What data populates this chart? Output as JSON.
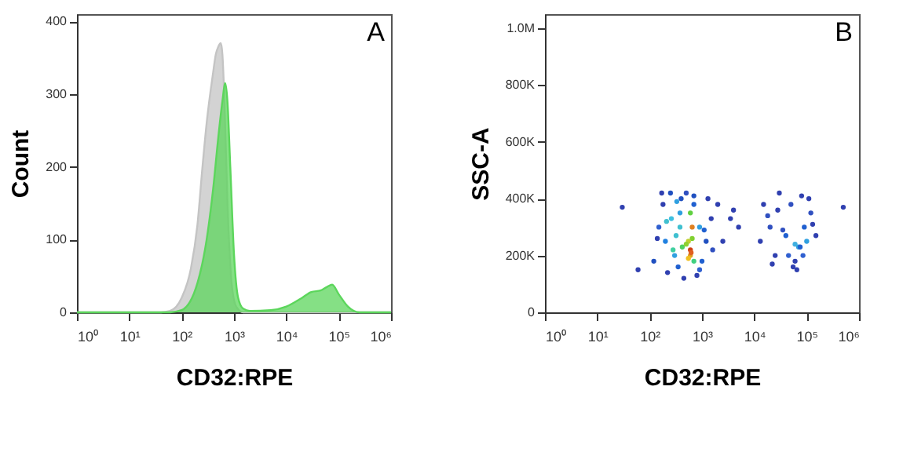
{
  "chart_data": [
    {
      "type": "area",
      "xlabel": "CD32:RPE",
      "ylabel": "Count",
      "annotations": [
        "A"
      ],
      "log": "x",
      "grid": false,
      "xlim": [
        1,
        1000000
      ],
      "xticks": [
        {
          "value": 1,
          "label": "10⁰"
        },
        {
          "value": 10,
          "label": "10¹"
        },
        {
          "value": 100,
          "label": "10²"
        },
        {
          "value": 1000,
          "label": "10³"
        },
        {
          "value": 10000,
          "label": "10⁴"
        },
        {
          "value": 100000,
          "label": "10⁵"
        },
        {
          "value": 1000000,
          "label": "10⁶"
        }
      ],
      "ylim": [
        0,
        410
      ],
      "yticks": [
        0,
        100,
        200,
        300,
        400
      ],
      "series": [
        {
          "color": "#c4c4c4",
          "x": [
            1,
            40,
            60,
            100,
            150,
            200,
            250,
            300,
            400,
            450,
            500,
            560,
            600,
            650,
            750,
            900,
            1100,
            1500,
            1000000
          ],
          "values": [
            0,
            0,
            2,
            20,
            60,
            120,
            200,
            260,
            330,
            355,
            365,
            370,
            355,
            300,
            150,
            40,
            8,
            0,
            0
          ]
        },
        {
          "color": "#5cd65c",
          "x": [
            1,
            60,
            100,
            200,
            300,
            400,
            500,
            600,
            680,
            750,
            850,
            1000,
            1200,
            1500,
            2000,
            5000,
            10000,
            20000,
            30000,
            45000,
            60000,
            75000,
            100000,
            150000,
            250000,
            1000000
          ],
          "values": [
            0,
            0,
            3,
            40,
            100,
            170,
            240,
            290,
            315,
            290,
            200,
            80,
            20,
            5,
            2,
            3,
            8,
            20,
            28,
            30,
            35,
            38,
            25,
            8,
            0,
            0
          ]
        }
      ]
    },
    {
      "type": "scatter",
      "xlabel": "CD32:RPE",
      "ylabel": "SSC-A",
      "annotations": [
        "B"
      ],
      "log": "x",
      "grid": false,
      "xlim": [
        1,
        1000000
      ],
      "xticks": [
        {
          "value": 1,
          "label": "10⁰"
        },
        {
          "value": 10,
          "label": "10¹"
        },
        {
          "value": 100,
          "label": "10²"
        },
        {
          "value": 1000,
          "label": "10³"
        },
        {
          "value": 10000,
          "label": "10⁴"
        },
        {
          "value": 100000,
          "label": "10⁵"
        },
        {
          "value": 1000000,
          "label": "10⁶"
        }
      ],
      "ylim": [
        0,
        1050000
      ],
      "yticks": [
        0,
        {
          "value": 200000,
          "label": "200K"
        },
        {
          "value": 400000,
          "label": "400K"
        },
        {
          "value": 600000,
          "label": "600K"
        },
        {
          "value": 800000,
          "label": "800K"
        },
        {
          "value": 1000000,
          "label": "1.0M"
        }
      ],
      "series": [
        {
          "x": [
            30,
            60,
            120,
            150,
            200,
            180,
            250,
            300,
            220,
            260,
            350,
            400,
            320,
            450,
            500,
            280,
            380,
            700,
            900,
            1200,
            1500,
            800,
            1000,
            1300,
            1600,
            1100,
            700,
            900,
            140,
            170,
            210,
            330,
            420,
            380,
            600,
            650,
            2000,
            2500,
            3500,
            5000,
            4000,
            13000,
            15000,
            20000,
            25000,
            30000,
            18000,
            40000,
            50000,
            60000,
            70000,
            80000,
            90000,
            100000,
            120000,
            150000,
            45000,
            55000,
            65000,
            75000,
            35000,
            85000,
            110000,
            130000,
            22000,
            28000,
            60000,
            500000,
            600,
            550,
            650,
            700,
            500,
            600,
            550,
            620
          ],
          "values": [
            370000,
            150000,
            180000,
            300000,
            250000,
            380000,
            420000,
            200000,
            140000,
            330000,
            160000,
            400000,
            270000,
            120000,
            420000,
            220000,
            350000,
            380000,
            300000,
            250000,
            330000,
            130000,
            180000,
            400000,
            220000,
            290000,
            410000,
            150000,
            260000,
            420000,
            320000,
            390000,
            230000,
            300000,
            350000,
            260000,
            380000,
            250000,
            330000,
            300000,
            360000,
            250000,
            380000,
            300000,
            200000,
            420000,
            340000,
            270000,
            380000,
            180000,
            230000,
            410000,
            300000,
            250000,
            350000,
            270000,
            200000,
            160000,
            150000,
            230000,
            290000,
            200000,
            400000,
            310000,
            170000,
            360000,
            240000,
            370000,
            200000,
            250000,
            300000,
            180000,
            240000,
            220000,
            190000,
            210000
          ],
          "colors": [
            "#3040b0",
            "#3040b0",
            "#2050c0",
            "#3060d0",
            "#2080e0",
            "#3040b0",
            "#2050c0",
            "#30a0e0",
            "#3040b0",
            "#40c0e0",
            "#2060d0",
            "#2050c0",
            "#40c0d0",
            "#3040b0",
            "#3050c0",
            "#40d0a0",
            "#30a0e0",
            "#2060d0",
            "#30a0e0",
            "#2050c0",
            "#3040b0",
            "#3040b0",
            "#2060d0",
            "#3040b0",
            "#3050c0",
            "#2060d0",
            "#2050c0",
            "#3060d0",
            "#3040b0",
            "#3040b0",
            "#40c0d0",
            "#30a0e0",
            "#50d060",
            "#40c0d0",
            "#60d040",
            "#80d030",
            "#3040b0",
            "#3040b0",
            "#3040b0",
            "#3040b0",
            "#3040b0",
            "#3040b0",
            "#3040b0",
            "#3050c0",
            "#3040b0",
            "#3040b0",
            "#3050c0",
            "#2060d0",
            "#3050c0",
            "#3040b0",
            "#30a0e0",
            "#3040b0",
            "#2060d0",
            "#30a0e0",
            "#3050c0",
            "#3040b0",
            "#3060d0",
            "#3040b0",
            "#3040b0",
            "#2060d0",
            "#3050c0",
            "#3060d0",
            "#3040b0",
            "#3040b0",
            "#3040b0",
            "#3040b0",
            "#40b0e0",
            "#3040b0",
            "#e0a020",
            "#c0d030",
            "#e08020",
            "#40d080",
            "#90d030",
            "#d04010",
            "#f0c020",
            "#e06020"
          ]
        }
      ]
    }
  ]
}
